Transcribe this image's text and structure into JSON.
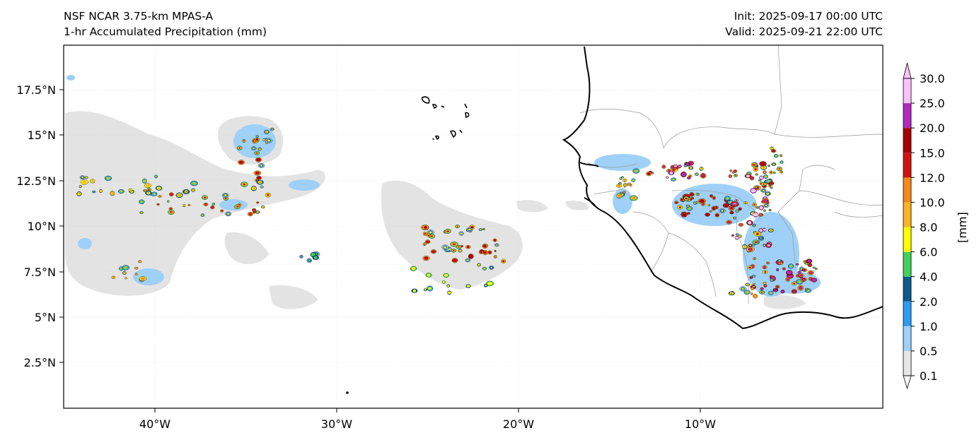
{
  "header": {
    "title_left_1": "NSF NCAR 3.75-km MPAS-A",
    "title_left_2": "1-hr Accumulated Precipitation (mm)",
    "title_right_1": "Init: 2025-09-17 00:00 UTC",
    "title_right_2": "Valid: 2025-09-21 22:00 UTC"
  },
  "map": {
    "lon_labels": [
      "40°W",
      "30°W",
      "20°W",
      "10°W"
    ],
    "lat_labels": [
      "17.5°N",
      "15°N",
      "12.5°N",
      "10°N",
      "7.5°N",
      "5°N",
      "2.5°N"
    ],
    "gridlines": true
  },
  "colorbar": {
    "unit_label": "[mm]",
    "levels": [
      "0.1",
      "0.5",
      "1.0",
      "2.0",
      "4.0",
      "6.0",
      "8.0",
      "10.0",
      "12.0",
      "15.0",
      "20.0",
      "25.0",
      "30.0"
    ],
    "colors": [
      "#e6e6e6",
      "#9fd0f7",
      "#2f9cf2",
      "#0d5b8c",
      "#45d05a",
      "#ffff00",
      "#fbb327",
      "#ef8a1e",
      "#cf1410",
      "#a50000",
      "#b02bbd",
      "#f9c2f6"
    ],
    "extend": "both"
  }
}
